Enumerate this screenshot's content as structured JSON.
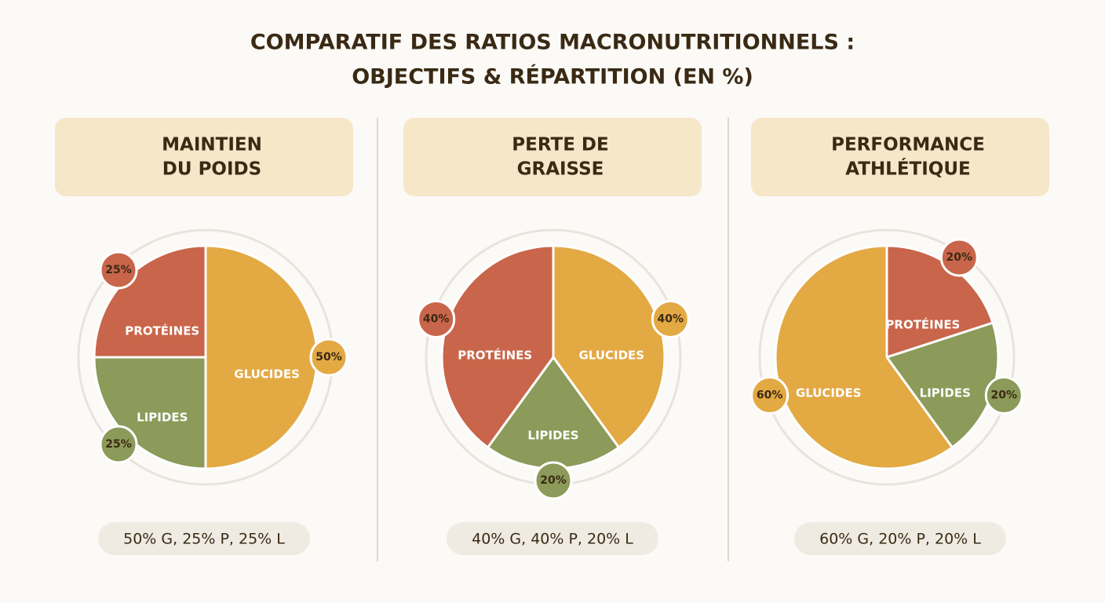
{
  "title": [
    "COMPARATIF DES RATIOS MACRONUTRITIONNELS :",
    "OBJECTIFS & RÉPARTITION (EN %)"
  ],
  "chart_data": [
    {
      "type": "pie",
      "title": [
        "MAINTIEN",
        "DU POIDS"
      ],
      "categories": [
        "GLUCIDES",
        "LIPIDES",
        "PROTÉINES"
      ],
      "values": [
        50,
        25,
        25
      ],
      "value_labels": [
        "50%",
        "25%",
        "25%"
      ],
      "colors": [
        "#e3a943",
        "#8c9a5a",
        "#c9654a"
      ],
      "caption": "50% G, 25% P, 25% L"
    },
    {
      "type": "pie",
      "title": [
        "PERTE DE",
        "GRAISSE"
      ],
      "categories": [
        "GLUCIDES",
        "LIPIDES",
        "PROTÉINES"
      ],
      "values": [
        40,
        20,
        40
      ],
      "value_labels": [
        "40%",
        "20%",
        "40%"
      ],
      "colors": [
        "#e3a943",
        "#8c9a5a",
        "#c9654a"
      ],
      "caption": "40% G, 40% P, 20% L"
    },
    {
      "type": "pie",
      "title": [
        "PERFORMANCE",
        "ATHLÉTIQUE"
      ],
      "categories": [
        "PROTÉINES",
        "LIPIDES",
        "GLUCIDES"
      ],
      "values": [
        20,
        20,
        60
      ],
      "value_labels": [
        "20%",
        "20%",
        "60%"
      ],
      "colors": [
        "#c9654a",
        "#8c9a5a",
        "#e3a943"
      ],
      "caption": "60% G, 20% P, 20% L"
    }
  ]
}
